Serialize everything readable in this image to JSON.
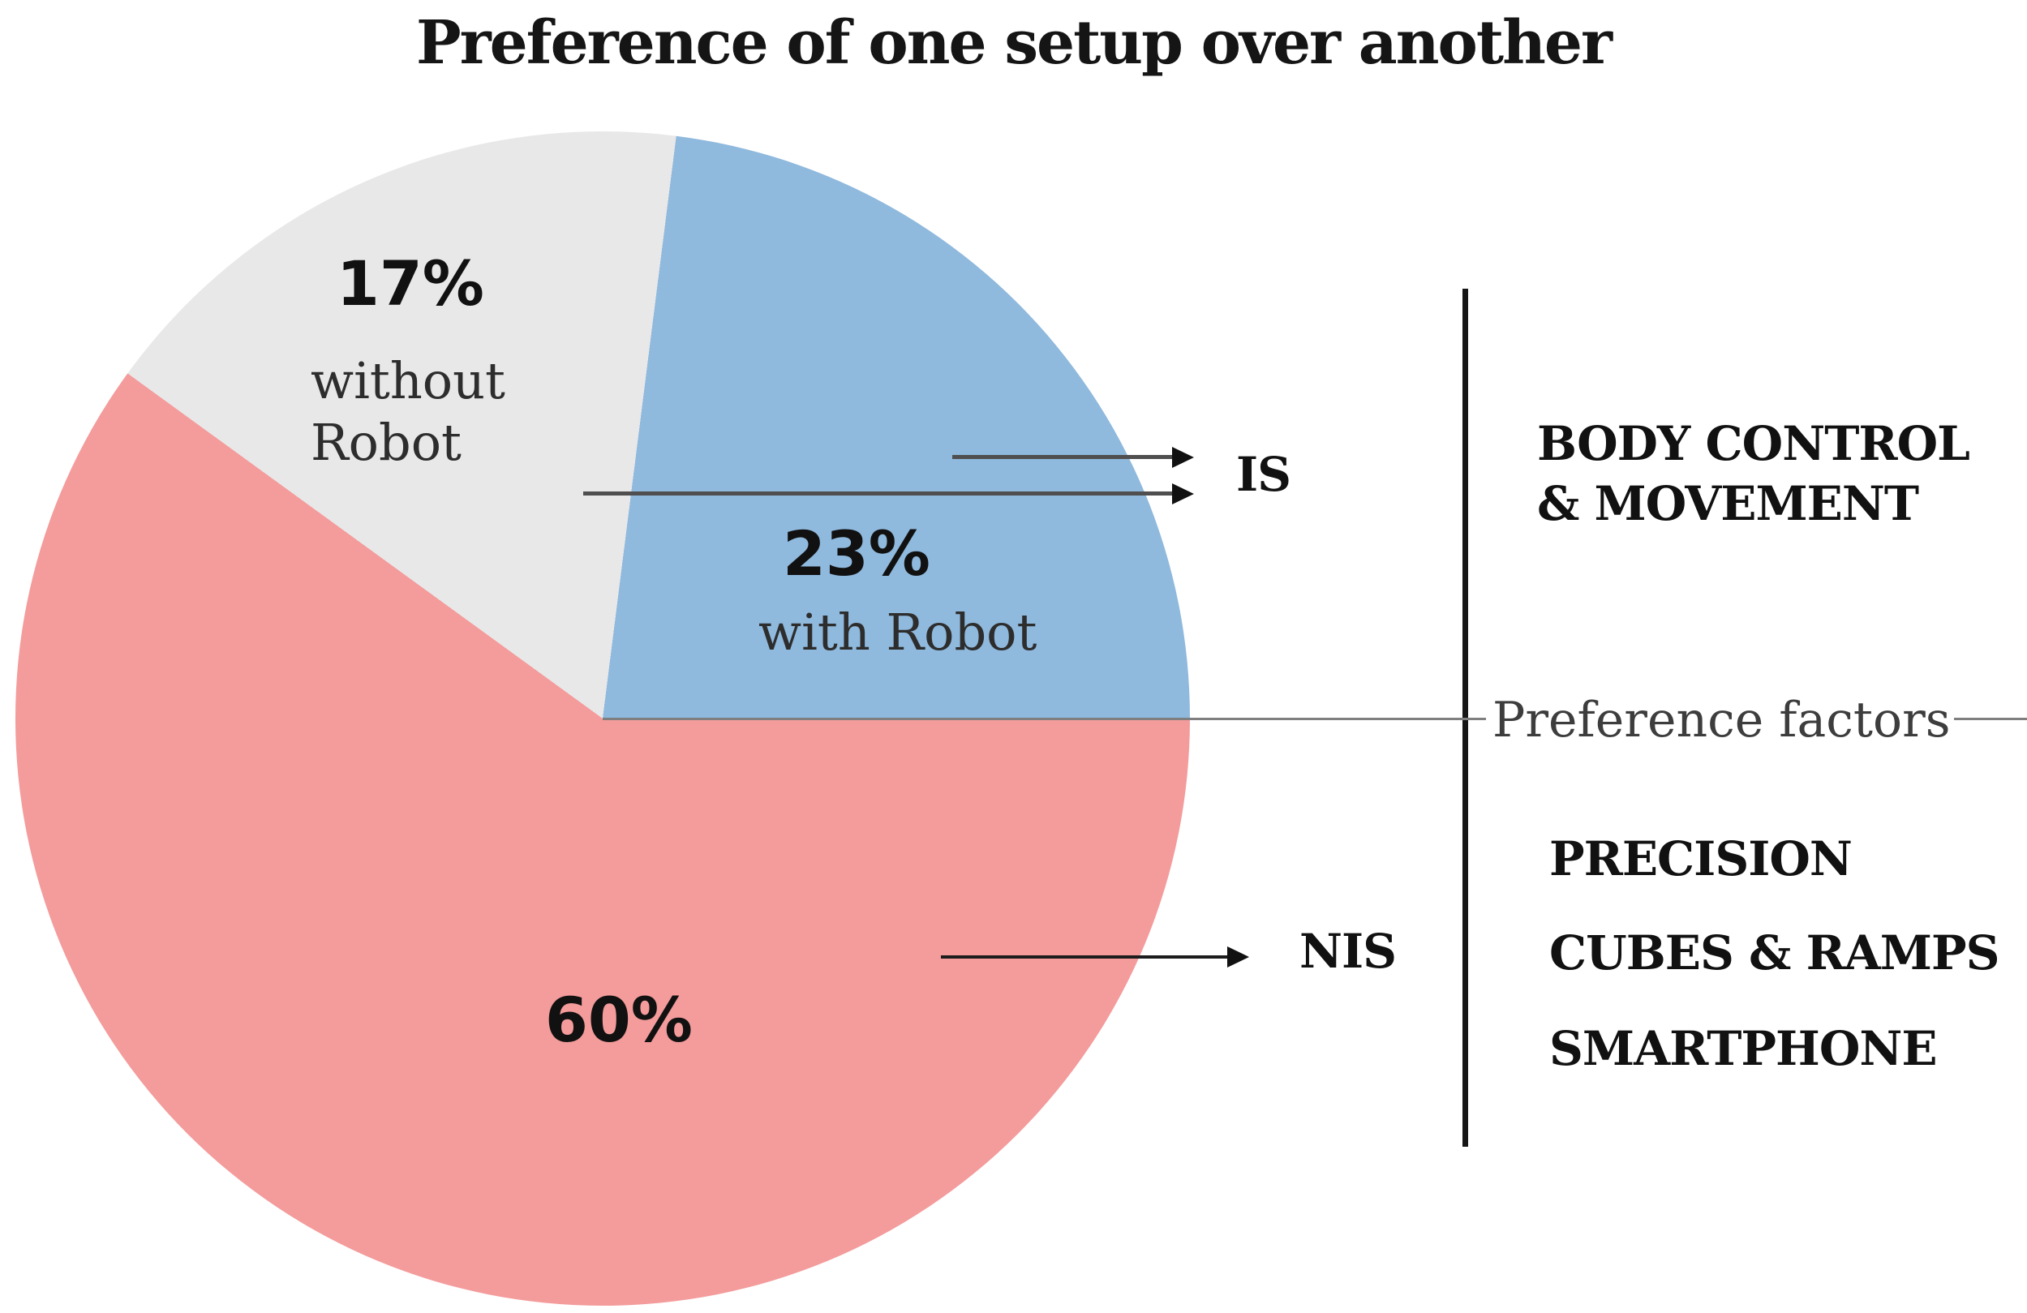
{
  "title": "Preference of one setup over another",
  "chart_data": {
    "type": "pie",
    "title": "Preference of one setup over another",
    "start_angle_deg": 7.2,
    "clockwise_from_top": true,
    "slices": [
      {
        "name": "with Robot",
        "pct": 23,
        "pct_label": "23%",
        "sub_label": "with Robot",
        "color": "#8FB9DD",
        "points_to": "IS"
      },
      {
        "name": "unlabeled-nis",
        "pct": 60,
        "pct_label": "60%",
        "sub_label": "",
        "color": "#F49B9B",
        "points_to": "NIS"
      },
      {
        "name": "without Robot",
        "pct": 17,
        "pct_label": "17%",
        "sub_label": "without Robot",
        "color": "#E8E8E9",
        "points_to": "IS"
      }
    ],
    "annotation_axis_label": "Preference factors",
    "legend_position": "right"
  },
  "right_panel": {
    "is_label": "IS",
    "nis_label": "NIS",
    "axis_label": "Preference factors",
    "is_factors_line1": "BODY CONTROL",
    "is_factors_line2": "& MOVEMENT",
    "nis_factor_1": "PRECISION",
    "nis_factor_2": "CUBES & RAMPS",
    "nis_factor_3": "SMARTPHONE"
  }
}
